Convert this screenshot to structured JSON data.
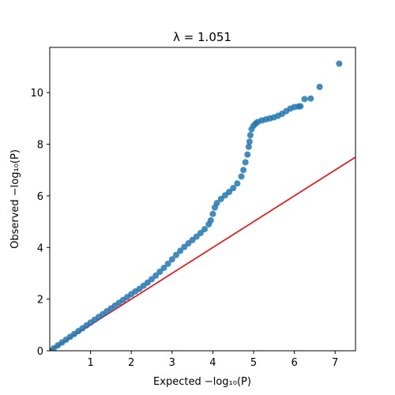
{
  "chart_data": {
    "type": "scatter",
    "title": "λ = 1.051",
    "xlabel": "Expected −log₁₀(P)",
    "ylabel": "Observed −log₁₀(P)",
    "xlim": [
      0,
      7.5
    ],
    "ylim": [
      0,
      11.75
    ],
    "xticks": [
      1,
      2,
      3,
      4,
      5,
      6,
      7
    ],
    "yticks": [
      0,
      2,
      4,
      6,
      8,
      10
    ],
    "grid": false,
    "legend": "none",
    "colors": {
      "points": "#1f77b4",
      "reference_line": "#ff0000"
    },
    "reference_line": {
      "slope": 1.0,
      "intercept": 0.0,
      "x_range": [
        0,
        7.5
      ]
    },
    "series": [
      {
        "points": [
          [
            0.0,
            0.0
          ],
          [
            0.1,
            0.1
          ],
          [
            0.2,
            0.21
          ],
          [
            0.3,
            0.32
          ],
          [
            0.4,
            0.43
          ],
          [
            0.5,
            0.54
          ],
          [
            0.6,
            0.65
          ],
          [
            0.7,
            0.76
          ],
          [
            0.8,
            0.87
          ],
          [
            0.9,
            0.98
          ],
          [
            1.0,
            1.09
          ],
          [
            1.1,
            1.2
          ],
          [
            1.2,
            1.31
          ],
          [
            1.3,
            1.42
          ],
          [
            1.4,
            1.53
          ],
          [
            1.5,
            1.64
          ],
          [
            1.6,
            1.75
          ],
          [
            1.7,
            1.86
          ],
          [
            1.8,
            1.97
          ],
          [
            1.9,
            2.08
          ],
          [
            2.0,
            2.19
          ],
          [
            2.1,
            2.3
          ],
          [
            2.2,
            2.4
          ],
          [
            2.3,
            2.52
          ],
          [
            2.4,
            2.64
          ],
          [
            2.5,
            2.77
          ],
          [
            2.6,
            2.91
          ],
          [
            2.7,
            3.06
          ],
          [
            2.8,
            3.21
          ],
          [
            2.9,
            3.37
          ],
          [
            3.0,
            3.54
          ],
          [
            3.1,
            3.71
          ],
          [
            3.2,
            3.87
          ],
          [
            3.3,
            4.02
          ],
          [
            3.4,
            4.16
          ],
          [
            3.5,
            4.29
          ],
          [
            3.6,
            4.42
          ],
          [
            3.7,
            4.56
          ],
          [
            3.8,
            4.71
          ],
          [
            3.9,
            4.9
          ],
          [
            3.95,
            5.05
          ],
          [
            4.0,
            5.3
          ],
          [
            4.05,
            5.55
          ],
          [
            4.1,
            5.72
          ],
          [
            4.2,
            5.88
          ],
          [
            4.3,
            6.02
          ],
          [
            4.4,
            6.15
          ],
          [
            4.5,
            6.3
          ],
          [
            4.6,
            6.48
          ],
          [
            4.7,
            6.75
          ],
          [
            4.75,
            7.0
          ],
          [
            4.8,
            7.3
          ],
          [
            4.85,
            7.6
          ],
          [
            4.88,
            7.9
          ],
          [
            4.9,
            8.1
          ],
          [
            4.92,
            8.35
          ],
          [
            4.95,
            8.58
          ],
          [
            5.0,
            8.72
          ],
          [
            5.05,
            8.8
          ],
          [
            5.1,
            8.86
          ],
          [
            5.2,
            8.92
          ],
          [
            5.3,
            8.96
          ],
          [
            5.4,
            9.0
          ],
          [
            5.5,
            9.04
          ],
          [
            5.6,
            9.1
          ],
          [
            5.7,
            9.18
          ],
          [
            5.8,
            9.28
          ],
          [
            5.9,
            9.38
          ],
          [
            6.0,
            9.44
          ],
          [
            6.1,
            9.46
          ],
          [
            6.15,
            9.47
          ],
          [
            6.25,
            9.75
          ],
          [
            6.4,
            9.77
          ],
          [
            6.62,
            10.22
          ],
          [
            7.1,
            11.12
          ]
        ]
      }
    ]
  }
}
